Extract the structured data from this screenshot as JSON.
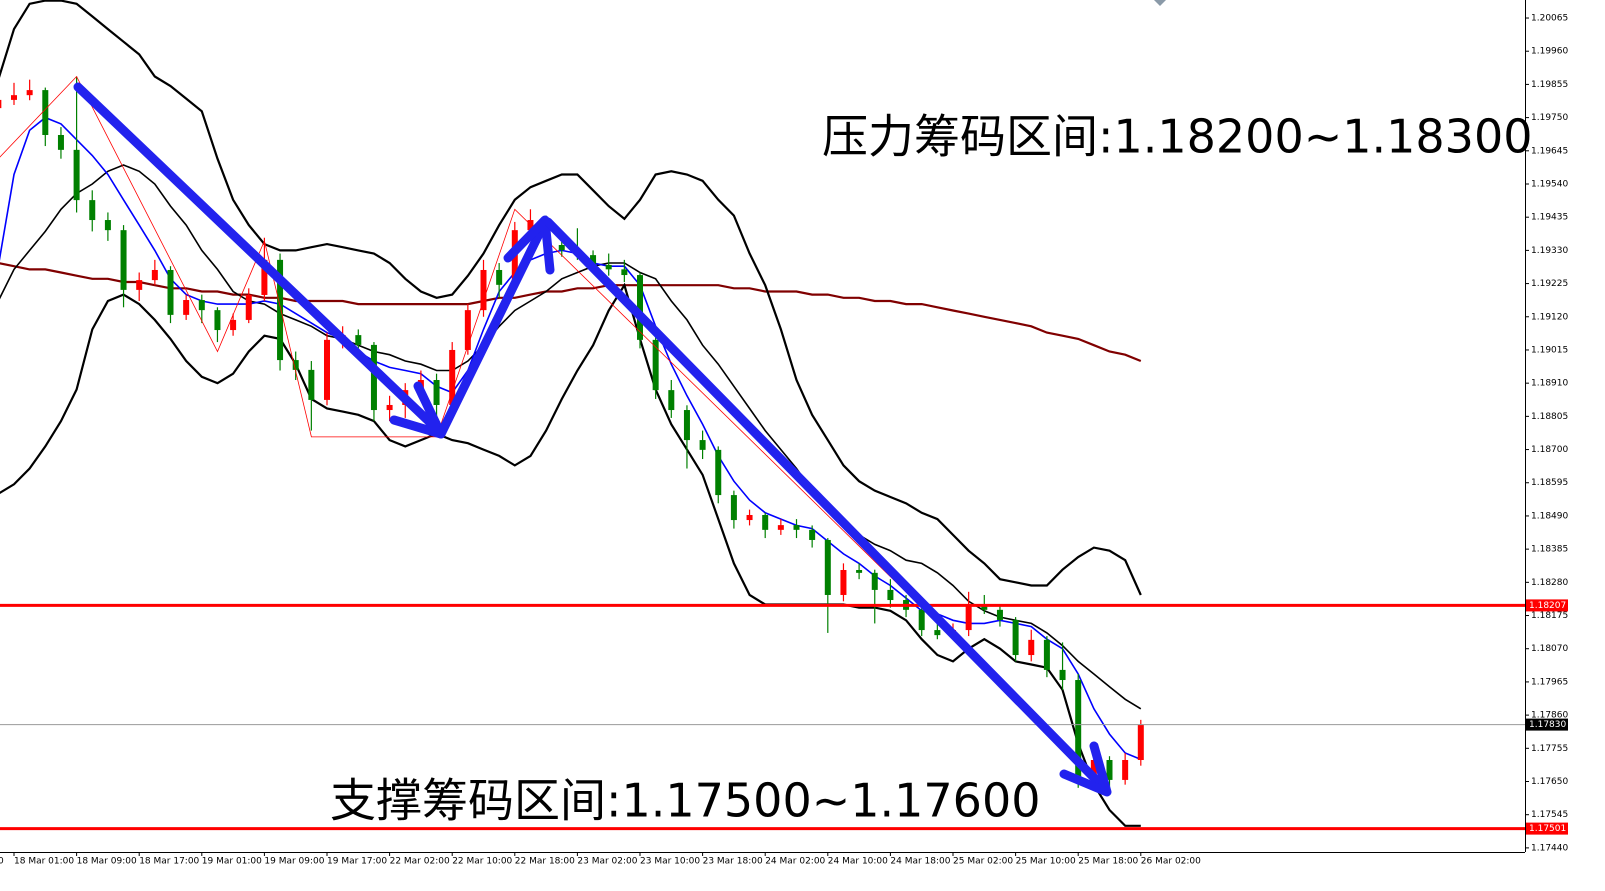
{
  "chart_data": {
    "type": "candlestick",
    "clipped_label": "0",
    "categories": [
      null,
      "18 Mar 01:00",
      null,
      null,
      null,
      "18 Mar 09:00",
      null,
      null,
      null,
      "18 Mar 17:00",
      null,
      null,
      null,
      "19 Mar 01:00",
      null,
      null,
      null,
      "19 Mar 09:00",
      null,
      null,
      null,
      "19 Mar 17:00",
      null,
      null,
      null,
      "22 Mar 02:00",
      null,
      null,
      null,
      "22 Mar 10:00",
      null,
      null,
      null,
      "22 Mar 18:00",
      null,
      null,
      null,
      "23 Mar 02:00",
      null,
      null,
      null,
      "23 Mar 10:00",
      null,
      null,
      null,
      "23 Mar 18:00",
      null,
      null,
      null,
      "24 Mar 02:00",
      null,
      null,
      null,
      "24 Mar 10:00",
      null,
      null,
      null,
      "24 Mar 18:00",
      null,
      null,
      null,
      "25 Mar 02:00",
      null,
      null,
      null,
      "25 Mar 10:00",
      null,
      null,
      null,
      "25 Mar 18:00",
      null,
      null,
      null,
      "26 Mar 02:00"
    ],
    "candles": [
      [
        1.1978,
        1.1985,
        1.1976,
        1.19806
      ],
      [
        1.19806,
        1.1986,
        1.1979,
        1.19821
      ],
      [
        1.19821,
        1.1987,
        1.19805,
        1.19837
      ],
      [
        1.19837,
        1.19845,
        1.1966,
        1.19695
      ],
      [
        1.19695,
        1.1972,
        1.1962,
        1.19648
      ],
      [
        1.19648,
        1.1988,
        1.1945,
        1.19489
      ],
      [
        1.19489,
        1.1952,
        1.1939,
        1.19426
      ],
      [
        1.19426,
        1.1945,
        1.1936,
        1.19394
      ],
      [
        1.19394,
        1.1941,
        1.1915,
        1.19205
      ],
      [
        1.19205,
        1.1926,
        1.1917,
        1.19236
      ],
      [
        1.19236,
        1.193,
        1.1922,
        1.19268
      ],
      [
        1.19268,
        1.1928,
        1.191,
        1.19126
      ],
      [
        1.19126,
        1.1919,
        1.1911,
        1.19173
      ],
      [
        1.19173,
        1.1919,
        1.191,
        1.19141
      ],
      [
        1.19141,
        1.1915,
        1.1904,
        1.19078
      ],
      [
        1.19078,
        1.1913,
        1.1906,
        1.1911
      ],
      [
        1.1911,
        1.1921,
        1.191,
        1.19189
      ],
      [
        1.19189,
        1.1937,
        1.1917,
        1.193
      ],
      [
        1.193,
        1.1932,
        1.1895,
        1.18983
      ],
      [
        1.18983,
        1.1901,
        1.1892,
        1.18952
      ],
      [
        1.18952,
        1.1898,
        1.1876,
        1.18857
      ],
      [
        1.18857,
        1.1907,
        1.1884,
        1.19047
      ],
      [
        1.19047,
        1.1909,
        1.1902,
        1.19062
      ],
      [
        1.19062,
        1.1908,
        1.19,
        1.19031
      ],
      [
        1.19031,
        1.1904,
        1.1879,
        1.18825
      ],
      [
        1.18825,
        1.1887,
        1.1879,
        1.18841
      ],
      [
        1.18841,
        1.1891,
        1.188,
        1.18888
      ],
      [
        1.18888,
        1.1895,
        1.1887,
        1.1892
      ],
      [
        1.1892,
        1.1894,
        1.1878,
        1.18841
      ],
      [
        1.18841,
        1.1904,
        1.1882,
        1.19015
      ],
      [
        1.19015,
        1.1916,
        1.19,
        1.19141
      ],
      [
        1.19141,
        1.193,
        1.1912,
        1.19268
      ],
      [
        1.19268,
        1.1929,
        1.1918,
        1.19221
      ],
      [
        1.19221,
        1.1942,
        1.192,
        1.19394
      ],
      [
        1.19394,
        1.1946,
        1.1937,
        1.19426
      ],
      [
        1.19426,
        1.1944,
        1.1933,
        1.19347
      ],
      [
        1.19347,
        1.1938,
        1.1931,
        1.19331
      ],
      [
        1.19331,
        1.194,
        1.193,
        1.19315
      ],
      [
        1.19315,
        1.1933,
        1.1927,
        1.19284
      ],
      [
        1.19284,
        1.1932,
        1.1925,
        1.1927
      ],
      [
        1.1927,
        1.193,
        1.1923,
        1.19252
      ],
      [
        1.19252,
        1.1926,
        1.1902,
        1.19047
      ],
      [
        1.19047,
        1.1906,
        1.1886,
        1.18888
      ],
      [
        1.18888,
        1.1892,
        1.188,
        1.18825
      ],
      [
        1.18825,
        1.1884,
        1.1864,
        1.1873
      ],
      [
        1.1873,
        1.1876,
        1.1867,
        1.18699
      ],
      [
        1.18699,
        1.1871,
        1.1853,
        1.18556
      ],
      [
        1.18556,
        1.1857,
        1.1845,
        1.18477
      ],
      [
        1.18477,
        1.1851,
        1.1846,
        1.18493
      ],
      [
        1.18493,
        1.185,
        1.1842,
        1.18446
      ],
      [
        1.18446,
        1.1848,
        1.1843,
        1.18461
      ],
      [
        1.18461,
        1.1848,
        1.1842,
        1.18446
      ],
      [
        1.18446,
        1.1846,
        1.1839,
        1.18414
      ],
      [
        1.18414,
        1.1842,
        1.1812,
        1.1824
      ],
      [
        1.1824,
        1.1834,
        1.1822,
        1.18319
      ],
      [
        1.18319,
        1.1834,
        1.1829,
        1.1831
      ],
      [
        1.1831,
        1.1832,
        1.1815,
        1.18256
      ],
      [
        1.18256,
        1.1829,
        1.182,
        1.18224
      ],
      [
        1.18224,
        1.1824,
        1.1817,
        1.18193
      ],
      [
        1.18193,
        1.1821,
        1.1811,
        1.18129
      ],
      [
        1.18129,
        1.1815,
        1.181,
        1.18113
      ],
      [
        1.18113,
        1.1815,
        1.181,
        1.18129
      ],
      [
        1.18129,
        1.1825,
        1.1811,
        1.18208
      ],
      [
        1.18208,
        1.1824,
        1.1818,
        1.18193
      ],
      [
        1.18193,
        1.1821,
        1.1814,
        1.18161
      ],
      [
        1.18161,
        1.1817,
        1.1803,
        1.1805
      ],
      [
        1.1805,
        1.1813,
        1.1803,
        1.18098
      ],
      [
        1.18098,
        1.1811,
        1.1798,
        1.18003
      ],
      [
        1.18003,
        1.1809,
        1.1794,
        1.17971
      ],
      [
        1.17971,
        1.1799,
        1.1763,
        1.17655
      ],
      [
        1.17655,
        1.1775,
        1.1764,
        1.17718
      ],
      [
        1.17718,
        1.1773,
        1.1763,
        1.17655
      ],
      [
        1.17655,
        1.1774,
        1.1764,
        1.17718
      ],
      [
        1.17718,
        1.17845,
        1.177,
        1.1783
      ]
    ],
    "up_color": "#ff0000",
    "down_color": "#008000",
    "ylim": [
      1.17427,
      1.20122
    ],
    "yticks": [
      1.20065,
      {
        "value": 1.1996,
        "label": "1.19960"
      },
      1.19855,
      {
        "value": 1.1975,
        "label": "1.19750"
      },
      1.19645,
      {
        "value": 1.1954,
        "label": "1.19540"
      },
      1.19435,
      {
        "value": 1.1933,
        "label": "1.19330"
      },
      1.19225,
      {
        "value": 1.1912,
        "label": "1.19120"
      },
      1.19015,
      {
        "value": 1.1891,
        "label": "1.18910"
      },
      1.18805,
      {
        "value": 1.187,
        "label": "1.18700"
      },
      1.18595,
      {
        "value": 1.1849,
        "label": "1.18490"
      },
      1.18385,
      {
        "value": 1.1828,
        "label": "1.18280"
      },
      1.18175,
      {
        "value": 1.1807,
        "label": "1.18070"
      },
      1.17965,
      {
        "value": 1.1786,
        "label": "1.17860"
      },
      1.17755,
      {
        "value": 1.1765,
        "label": "1.17650"
      },
      1.17545,
      {
        "value": 1.1744,
        "label": "1.17440"
      }
    ],
    "lines": [
      {
        "color": "#800000",
        "width": 2.2,
        "values": [
          1.1929,
          1.1928,
          1.1927,
          1.1927,
          1.1926,
          1.1925,
          1.1924,
          1.1924,
          1.1923,
          1.1923,
          1.1922,
          1.1921,
          1.1921,
          1.192,
          1.192,
          1.1919,
          1.1919,
          1.1918,
          1.1918,
          1.1917,
          1.1917,
          1.1917,
          1.1917,
          1.1916,
          1.1916,
          1.1916,
          1.1916,
          1.1916,
          1.1916,
          1.1916,
          1.1916,
          1.1917,
          1.1918,
          1.1918,
          1.1919,
          1.192,
          1.192,
          1.1921,
          1.1921,
          1.1922,
          1.1922,
          1.1922,
          1.1922,
          1.1922,
          1.1922,
          1.1922,
          1.1922,
          1.1921,
          1.1921,
          1.192,
          1.192,
          1.192,
          1.1919,
          1.1919,
          1.1918,
          1.1918,
          1.1917,
          1.1917,
          1.1916,
          1.1916,
          1.1915,
          1.1914,
          1.1913,
          1.1912,
          1.1911,
          1.191,
          1.1909,
          1.1907,
          1.1906,
          1.1905,
          1.1903,
          1.1901,
          1.19,
          1.1898
        ]
      },
      {
        "color": "#000000",
        "width": 2.2,
        "values": [
          1.1987,
          1.2003,
          1.2011,
          1.2012,
          1.2012,
          1.2011,
          1.2007,
          1.2003,
          1.1999,
          1.1995,
          1.1988,
          1.1985,
          1.1981,
          1.1977,
          1.1962,
          1.1949,
          1.1941,
          1.1935,
          1.1933,
          1.1933,
          1.1934,
          1.1935,
          1.1934,
          1.1933,
          1.1932,
          1.1929,
          1.1924,
          1.192,
          1.1918,
          1.1919,
          1.1925,
          1.1932,
          1.1941,
          1.1949,
          1.1953,
          1.1955,
          1.1957,
          1.1957,
          1.1952,
          1.1947,
          1.1943,
          1.1949,
          1.1957,
          1.1958,
          1.1957,
          1.1955,
          1.1949,
          1.1944,
          1.1932,
          1.1922,
          1.1908,
          1.1892,
          1.1881,
          1.1873,
          1.1865,
          1.186,
          1.1857,
          1.1855,
          1.1853,
          1.185,
          1.1848,
          1.1843,
          1.1838,
          1.1834,
          1.1829,
          1.1828,
          1.1827,
          1.1827,
          1.1832,
          1.1836,
          1.1839,
          1.1838,
          1.1835,
          1.1824
        ]
      },
      {
        "color": "#000000",
        "width": 2.2,
        "values": [
          1.1856,
          1.1859,
          1.1864,
          1.1871,
          1.1879,
          1.1889,
          1.1908,
          1.1917,
          1.1919,
          1.1916,
          1.1911,
          1.1905,
          1.1898,
          1.1893,
          1.1891,
          1.1894,
          1.1901,
          1.1906,
          1.1905,
          1.1897,
          1.1886,
          1.1883,
          1.1882,
          1.1881,
          1.1879,
          1.1873,
          1.1871,
          1.1873,
          1.1875,
          1.1873,
          1.1872,
          1.187,
          1.1868,
          1.1865,
          1.1868,
          1.1876,
          1.1886,
          1.1895,
          1.1903,
          1.1914,
          1.1922,
          1.1905,
          1.1889,
          1.1878,
          1.187,
          1.1862,
          1.1848,
          1.1834,
          1.1824,
          1.1821,
          1.1821,
          1.1821,
          1.1821,
          1.1821,
          1.1821,
          1.182,
          1.182,
          1.1819,
          1.1816,
          1.181,
          1.1805,
          1.1803,
          1.1807,
          1.181,
          1.1807,
          1.1803,
          1.1802,
          1.1801,
          1.1794,
          1.1777,
          1.1764,
          1.1756,
          1.1751,
          1.1751
        ]
      },
      {
        "color": "#000000",
        "width": 1.6,
        "values": [
          1.1917,
          1.1927,
          1.1933,
          1.1939,
          1.1946,
          1.1951,
          1.1954,
          1.1958,
          1.196,
          1.1958,
          1.1954,
          1.1947,
          1.1941,
          1.1933,
          1.1927,
          1.192,
          1.1917,
          1.1916,
          1.1913,
          1.1911,
          1.1909,
          1.1906,
          1.1905,
          1.1903,
          1.1901,
          1.19,
          1.1898,
          1.1897,
          1.1895,
          1.1895,
          1.1898,
          1.1903,
          1.1909,
          1.1914,
          1.1917,
          1.192,
          1.1924,
          1.1926,
          1.1928,
          1.1929,
          1.1929,
          1.1926,
          1.1924,
          1.1917,
          1.1911,
          1.1903,
          1.1897,
          1.189,
          1.1883,
          1.1876,
          1.187,
          1.1864,
          1.1857,
          1.1851,
          1.1846,
          1.1843,
          1.184,
          1.1838,
          1.1835,
          1.1834,
          1.1831,
          1.1827,
          1.1822,
          1.1819,
          1.1817,
          1.1816,
          1.1815,
          1.1812,
          1.1808,
          1.1803,
          1.1799,
          1.1795,
          1.1791,
          1.1788
        ]
      },
      {
        "color": "#0000ff",
        "width": 1.6,
        "values": [
          1.1928,
          1.1957,
          1.1971,
          1.1975,
          1.1973,
          1.1968,
          1.1963,
          1.1957,
          1.1949,
          1.1941,
          1.1933,
          1.1924,
          1.1919,
          1.1917,
          1.1916,
          1.1916,
          1.1916,
          1.1917,
          1.1916,
          1.1913,
          1.191,
          1.1907,
          1.1905,
          1.1901,
          1.1898,
          1.1896,
          1.1895,
          1.1894,
          1.189,
          1.1888,
          1.1895,
          1.1908,
          1.192,
          1.1926,
          1.193,
          1.1932,
          1.1933,
          1.1932,
          1.1929,
          1.1928,
          1.1928,
          1.1922,
          1.1909,
          1.1897,
          1.1887,
          1.1878,
          1.1868,
          1.186,
          1.1854,
          1.185,
          1.1848,
          1.1846,
          1.1845,
          1.1841,
          1.1837,
          1.1834,
          1.183,
          1.1827,
          1.1823,
          1.1819,
          1.1818,
          1.1816,
          1.1815,
          1.1815,
          1.1816,
          1.1815,
          1.1814,
          1.181,
          1.1807,
          1.1799,
          1.1788,
          1.178,
          1.1774,
          1.1772
        ]
      }
    ],
    "zigzag": {
      "color": "#ff0000",
      "x": [
        0,
        5,
        14,
        17,
        20,
        28,
        33,
        71
      ],
      "values": [
        1.1962,
        1.1988,
        1.1901,
        1.1936,
        1.1874,
        1.1874,
        1.1946,
        1.1762
      ]
    },
    "levels": [
      {
        "value": 1.18207,
        "color": "#ff0000"
      },
      {
        "value": 1.1783,
        "label": "1.17830",
        "color": "#9a9a9a"
      },
      {
        "value": 1.17501,
        "color": "#ff0000"
      }
    ],
    "annotations": [
      {
        "text": "压力筹码区间:1.18200~1.18300"
      },
      {
        "text": "支撑筹码区间:1.17500~1.17600"
      }
    ]
  }
}
